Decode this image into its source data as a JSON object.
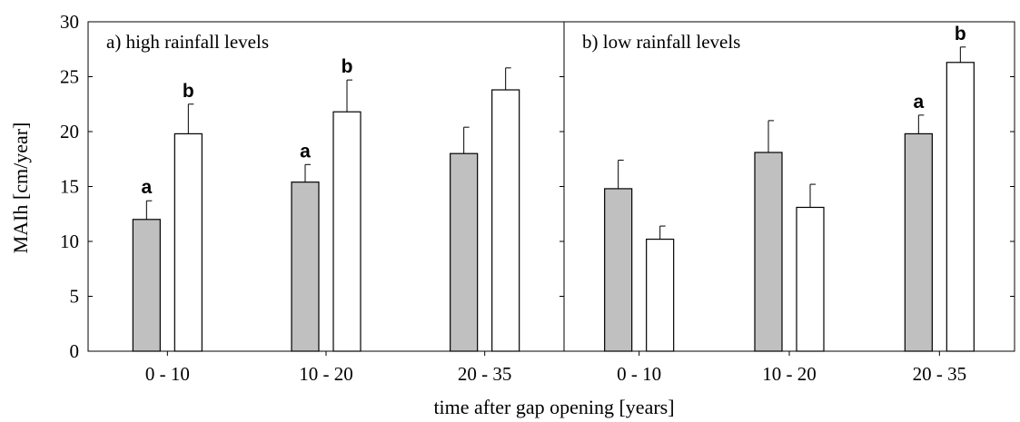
{
  "chart_data": {
    "type": "bar",
    "ylabel": "MAIh [cm/year]",
    "xlabel": "time after gap opening [years]",
    "ylim": [
      0,
      30
    ],
    "yticks": [
      0,
      5,
      10,
      15,
      20,
      25,
      30
    ],
    "colors": {
      "series_1": "#c0c0c0",
      "series_2": "#ffffff"
    },
    "panels": [
      {
        "title": "a) high rainfall levels",
        "categories": [
          "0 - 10",
          "10 - 20",
          "20 - 35"
        ],
        "series": [
          {
            "values": [
              12.0,
              15.4,
              18.0
            ],
            "errors": [
              1.7,
              1.6,
              2.4
            ],
            "letters": [
              "a",
              "a",
              ""
            ]
          },
          {
            "values": [
              19.8,
              21.8,
              23.8
            ],
            "errors": [
              2.7,
              2.9,
              2.0
            ],
            "letters": [
              "b",
              "b",
              ""
            ]
          }
        ]
      },
      {
        "title": "b) low rainfall levels",
        "categories": [
          "0 - 10",
          "10 - 20",
          "20 - 35"
        ],
        "series": [
          {
            "values": [
              14.8,
              18.1,
              19.8
            ],
            "errors": [
              2.6,
              2.9,
              1.7
            ],
            "letters": [
              "",
              "",
              "a"
            ]
          },
          {
            "values": [
              10.2,
              13.1,
              26.3
            ],
            "errors": [
              1.2,
              2.1,
              1.4
            ],
            "letters": [
              "",
              "",
              "b"
            ]
          }
        ]
      }
    ]
  }
}
